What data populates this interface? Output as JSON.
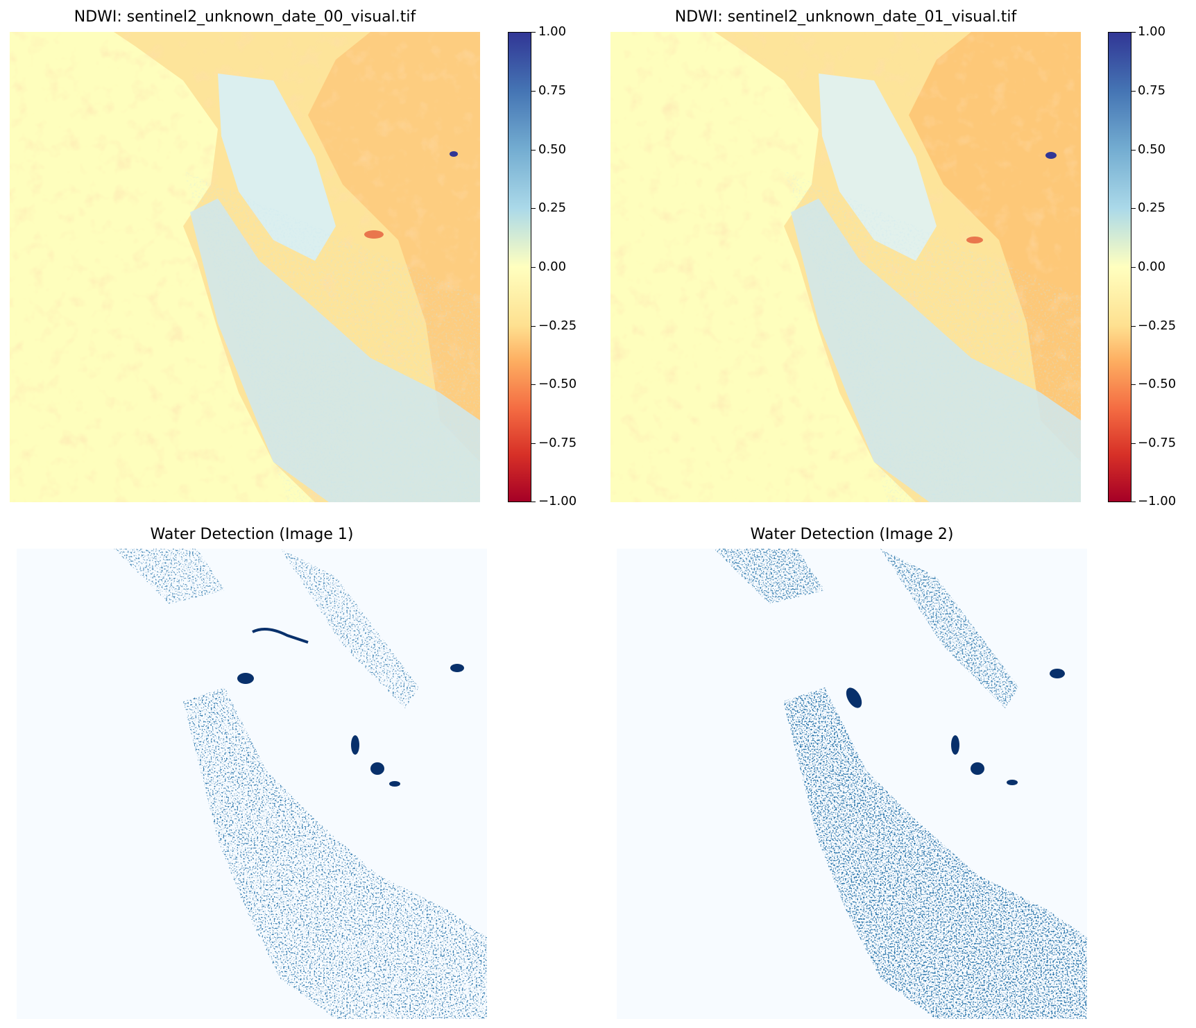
{
  "chart_data": [
    {
      "type": "heatmap",
      "title": "NDWI: sentinel2_unknown_date_00_visual.tif",
      "colormap": "RdYlBu",
      "colorbar": {
        "vmin": -1.0,
        "vmax": 1.0,
        "ticks": [
          "1.00",
          "0.75",
          "0.50",
          "0.25",
          "0.00",
          "−0.25",
          "−0.50",
          "−0.75",
          "−1.00"
        ]
      },
      "axes": "off",
      "description_values": {
        "ocean_ndwi": 0.02,
        "bay_ndwi": 0.3,
        "inland_ndwi": -0.15
      }
    },
    {
      "type": "heatmap",
      "title": "NDWI: sentinel2_unknown_date_01_visual.tif",
      "colormap": "RdYlBu",
      "colorbar": {
        "vmin": -1.0,
        "vmax": 1.0,
        "ticks": [
          "1.00",
          "0.75",
          "0.50",
          "0.25",
          "0.00",
          "−0.25",
          "−0.50",
          "−0.75",
          "−1.00"
        ]
      },
      "axes": "off",
      "description_values": {
        "ocean_ndwi": 0.02,
        "bay_ndwi": 0.3,
        "inland_ndwi": -0.15
      }
    },
    {
      "type": "heatmap",
      "title": "Water Detection (Image 1)",
      "colormap": "Blues",
      "axes": "off"
    },
    {
      "type": "heatmap",
      "title": "Water Detection (Image 2)",
      "colormap": "Blues",
      "axes": "off"
    }
  ],
  "colors": {
    "ocean": "#fefebd",
    "land_warm": "#fdd98a",
    "land_orange": "#fdbf71",
    "bay_light": "#d7eef5",
    "veg_blue": "#abd9e9",
    "water_mask_bg": "#f7fbff",
    "water_mask_fg": "#08306b"
  }
}
